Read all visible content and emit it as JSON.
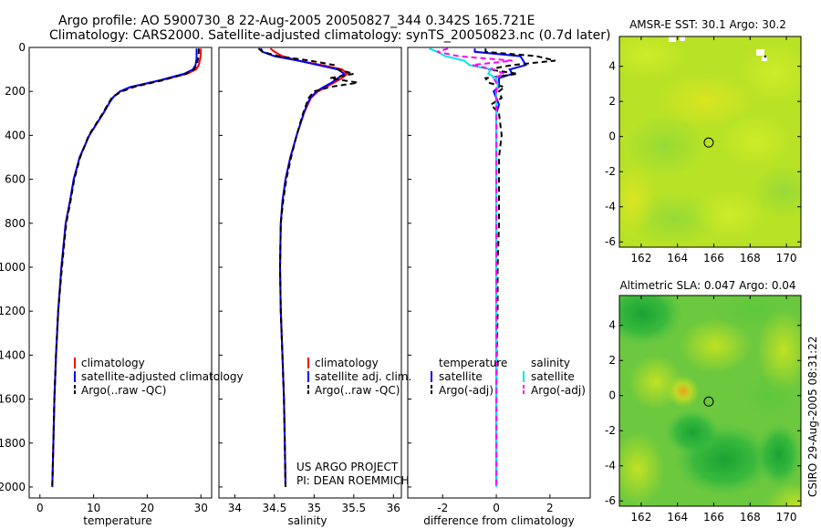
{
  "title_line1": "Argo profile: AO 5900730_8 22-Aug-2005 20050827_344 0.342S 165.721E",
  "title_line2": "Climatology: CARS2000. Satellite-adjusted climatology: synTS_20050823.nc (0.7d later)",
  "credit_line1": "US ARGO PROJECT",
  "credit_line2": "PI: DEAN ROEMMICH",
  "side_label": "CSIRO 29-Aug-2005 08:31:22",
  "colors": {
    "climatology": "#ff0000",
    "satellite": "#0000ff",
    "argo": "#000000",
    "salinity_satellite": "#00e5ee",
    "salinity_argo": "#ff00ff"
  },
  "chart_data": [
    {
      "type": "line",
      "id": "temperature",
      "title": "",
      "xlabel": "temperature",
      "ylabel": "",
      "xlim": [
        -2,
        32
      ],
      "ylim": [
        2050,
        0
      ],
      "xticks": [
        0,
        10,
        20,
        30
      ],
      "yticks": [
        0,
        200,
        400,
        600,
        800,
        1000,
        1200,
        1400,
        1600,
        1800,
        2000
      ],
      "depth": [
        5,
        20,
        50,
        80,
        100,
        120,
        150,
        180,
        200,
        225,
        250,
        300,
        400,
        500,
        600,
        700,
        800,
        1000,
        1200,
        1400,
        1600,
        1800,
        2000
      ],
      "series": [
        {
          "name": "climatology",
          "color": "#ff0000",
          "dash": "",
          "values": [
            30.0,
            30.0,
            29.9,
            29.6,
            29.1,
            27.4,
            22.5,
            17.0,
            15.0,
            13.7,
            13.0,
            11.8,
            9.2,
            7.4,
            6.3,
            5.6,
            4.8,
            4.0,
            3.4,
            3.0,
            2.7,
            2.5,
            2.3
          ]
        },
        {
          "name": "satellite-adjusted climatology",
          "color": "#0000ff",
          "dash": "",
          "values": [
            29.2,
            29.2,
            29.2,
            29.0,
            28.5,
            26.9,
            22.3,
            16.8,
            14.9,
            13.7,
            13.0,
            11.8,
            9.2,
            7.4,
            6.3,
            5.6,
            4.8,
            4.0,
            3.4,
            3.0,
            2.7,
            2.5,
            2.3
          ]
        },
        {
          "name": "Argo(..raw -QC)",
          "color": "#000000",
          "dash": "6,4",
          "values": [
            29.6,
            29.6,
            29.5,
            29.2,
            28.7,
            27.2,
            22.8,
            17.5,
            15.3,
            13.5,
            12.9,
            11.7,
            9.1,
            7.5,
            6.4,
            5.7,
            4.9,
            4.1,
            3.4,
            3.0,
            2.7,
            2.5,
            2.3
          ]
        }
      ],
      "legend": [
        "climatology",
        "satellite-adjusted climatology",
        "Argo(..raw -QC)"
      ]
    },
    {
      "type": "line",
      "id": "salinity",
      "title": "",
      "xlabel": "salinity",
      "ylabel": "",
      "xlim": [
        33.8,
        36.1
      ],
      "ylim": [
        2050,
        0
      ],
      "xticks": [
        34,
        34.5,
        35,
        35.5,
        36
      ],
      "xticklabels": [
        "34",
        "34.5",
        "35",
        "35.5",
        "36"
      ],
      "depth": [
        5,
        20,
        40,
        60,
        80,
        100,
        120,
        140,
        160,
        180,
        200,
        230,
        260,
        300,
        400,
        500,
        600,
        700,
        800,
        1000,
        1200,
        1400,
        1600,
        1800,
        2000
      ],
      "series": [
        {
          "name": "climatology",
          "color": "#ff0000",
          "dash": "",
          "values": [
            34.45,
            34.5,
            34.6,
            34.8,
            35.1,
            35.35,
            35.42,
            35.35,
            35.25,
            35.15,
            35.05,
            34.96,
            34.92,
            34.87,
            34.78,
            34.7,
            34.64,
            34.6,
            34.58,
            34.57,
            34.58,
            34.6,
            34.62,
            34.63,
            34.64
          ]
        },
        {
          "name": "satellite adj. clim.",
          "color": "#0000ff",
          "dash": "",
          "values": [
            34.33,
            34.35,
            34.5,
            34.8,
            35.05,
            35.3,
            35.38,
            35.3,
            35.22,
            35.12,
            35.03,
            34.95,
            34.91,
            34.87,
            34.78,
            34.7,
            34.64,
            34.6,
            34.58,
            34.57,
            34.58,
            34.6,
            34.62,
            34.63,
            34.64
          ]
        },
        {
          "name": "Argo(..raw -QC)",
          "color": "#000000",
          "dash": "6,4",
          "values": [
            34.3,
            34.35,
            34.55,
            34.95,
            35.25,
            35.3,
            35.5,
            35.2,
            35.55,
            35.2,
            35.0,
            34.93,
            34.9,
            34.86,
            34.78,
            34.71,
            34.65,
            34.61,
            34.58,
            34.57,
            34.58,
            34.6,
            34.62,
            34.63,
            34.64
          ]
        }
      ],
      "legend": [
        "climatology",
        "satellite adj. clim.",
        "Argo(..raw -QC)"
      ]
    },
    {
      "type": "line",
      "id": "difference",
      "title": "",
      "xlabel": "difference from climatology",
      "ylabel": "",
      "xlim": [
        -3.3,
        3.5
      ],
      "ylim": [
        2050,
        0
      ],
      "xticks": [
        -2,
        0,
        2
      ],
      "depth": [
        5,
        20,
        40,
        60,
        80,
        100,
        120,
        140,
        160,
        180,
        200,
        230,
        260,
        300,
        400,
        500,
        600,
        700,
        800,
        1000,
        1200,
        1400,
        1600,
        1800,
        2000
      ],
      "series": [
        {
          "name": "temperature satellite",
          "color": "#0000ff",
          "dash": "",
          "values": [
            -0.8,
            -0.8,
            0.9,
            1.0,
            1.1,
            0.5,
            0.6,
            0.1,
            0.1,
            0.1,
            -0.1,
            0.0,
            0.1,
            0.0,
            0.0,
            0.0,
            0.0,
            0.0,
            0.0,
            0.0,
            0.0,
            0.0,
            0.0,
            0.0,
            0.0
          ]
        },
        {
          "name": "temperature Argo(-adj)",
          "color": "#000000",
          "dash": "6,4",
          "values": [
            -0.4,
            -0.4,
            1.5,
            2.2,
            0.6,
            -0.3,
            0.8,
            -0.4,
            -0.3,
            0.3,
            0.1,
            0.2,
            -0.2,
            0.1,
            0.2,
            0.1,
            0.1,
            0.1,
            0.1,
            0.05,
            0.05,
            0.02,
            0.0,
            0.0,
            0.0
          ]
        },
        {
          "name": "salinity satellite",
          "color": "#00e5ee",
          "dash": "",
          "values": [
            -2.5,
            -2.2,
            -1.9,
            -1.2,
            -1.0,
            -0.2,
            -0.3,
            0.0,
            0.05,
            0.05,
            0.0,
            0.0,
            0.0,
            0.0,
            0.0,
            0.0,
            0.0,
            0.0,
            0.0,
            0.0,
            0.0,
            0.0,
            0.0,
            0.0,
            0.0
          ]
        },
        {
          "name": "salinity Argo(-adj)",
          "color": "#ff00ff",
          "dash": "6,4",
          "values": [
            -1.8,
            -2.2,
            -1.4,
            0.6,
            -0.9,
            -0.1,
            0.3,
            -0.1,
            0.0,
            0.0,
            0.0,
            0.0,
            0.0,
            0.0,
            0.0,
            0.0,
            0.0,
            0.0,
            0.0,
            0.0,
            0.0,
            0.0,
            0.0,
            0.0,
            0.0
          ]
        }
      ],
      "legend_headers": [
        "temperature",
        "salinity"
      ],
      "legend": [
        "satellite",
        "Argo(-adj)",
        "satellite",
        "Argo(-adj)"
      ]
    },
    {
      "type": "heatmap",
      "id": "sst_map",
      "title": "AMSR-E SST: 30.1 Argo: 30.2",
      "xlim": [
        160.8,
        170.8
      ],
      "ylim": [
        -6.3,
        5.7
      ],
      "xticks": [
        162,
        164,
        166,
        168,
        170
      ],
      "yticks": [
        4,
        2,
        0,
        -2,
        -4,
        -6
      ],
      "marker": {
        "lon": 165.72,
        "lat": -0.34
      }
    },
    {
      "type": "heatmap",
      "id": "sla_map",
      "title": "Altimetric SLA: 0.047 Argo: 0.04",
      "xlim": [
        160.8,
        170.8
      ],
      "ylim": [
        -6.3,
        5.7
      ],
      "xticks": [
        162,
        164,
        166,
        168,
        170
      ],
      "yticks": [
        4,
        2,
        0,
        -2,
        -4,
        -6
      ],
      "marker": {
        "lon": 165.72,
        "lat": -0.34
      }
    }
  ]
}
